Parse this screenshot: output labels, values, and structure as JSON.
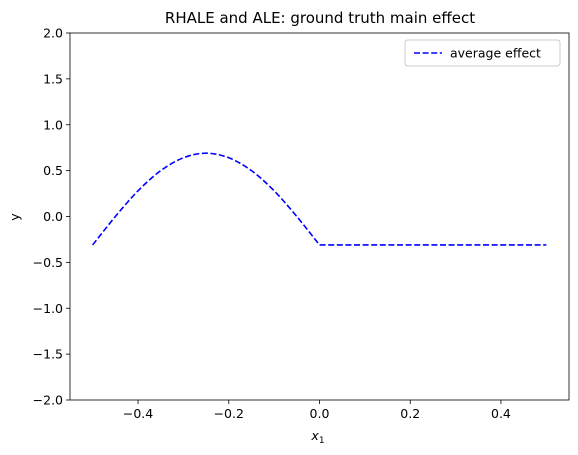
{
  "chart_data": {
    "type": "line",
    "title": "RHALE and ALE: ground truth main effect",
    "xlabel": "x",
    "xlabel_subscript": "1",
    "ylabel": "y",
    "xlim": [
      -0.55,
      0.55
    ],
    "ylim": [
      -2.0,
      2.0
    ],
    "xticks": [
      -0.4,
      -0.2,
      0.0,
      0.2,
      0.4
    ],
    "xtick_labels": [
      "−0.4",
      "−0.2",
      "0.0",
      "0.2",
      "0.4"
    ],
    "yticks": [
      -2.0,
      -1.5,
      -1.0,
      -0.5,
      0.0,
      0.5,
      1.0,
      1.5,
      2.0
    ],
    "ytick_labels": [
      "−2.0",
      "−1.5",
      "−1.0",
      "−0.5",
      "0.0",
      "0.5",
      "1.0",
      "1.5",
      "2.0"
    ],
    "grid": false,
    "legend_position": "top-right",
    "series": [
      {
        "name": "average effect",
        "color": "#0000ff",
        "linestyle": "dashed",
        "x": [
          -0.5,
          -0.45,
          -0.4,
          -0.35,
          -0.3,
          -0.25,
          -0.2,
          -0.15,
          -0.1,
          -0.05,
          0.0,
          0.05,
          0.1,
          0.15,
          0.2,
          0.25,
          0.3,
          0.35,
          0.4,
          0.45,
          0.5
        ],
        "y": [
          -0.31,
          -0.0,
          0.28,
          0.5,
          0.64,
          0.69,
          0.64,
          0.5,
          0.28,
          0.0,
          -0.31,
          -0.31,
          -0.31,
          -0.31,
          -0.31,
          -0.31,
          -0.31,
          -0.31,
          -0.31,
          -0.31,
          -0.31
        ]
      }
    ]
  }
}
